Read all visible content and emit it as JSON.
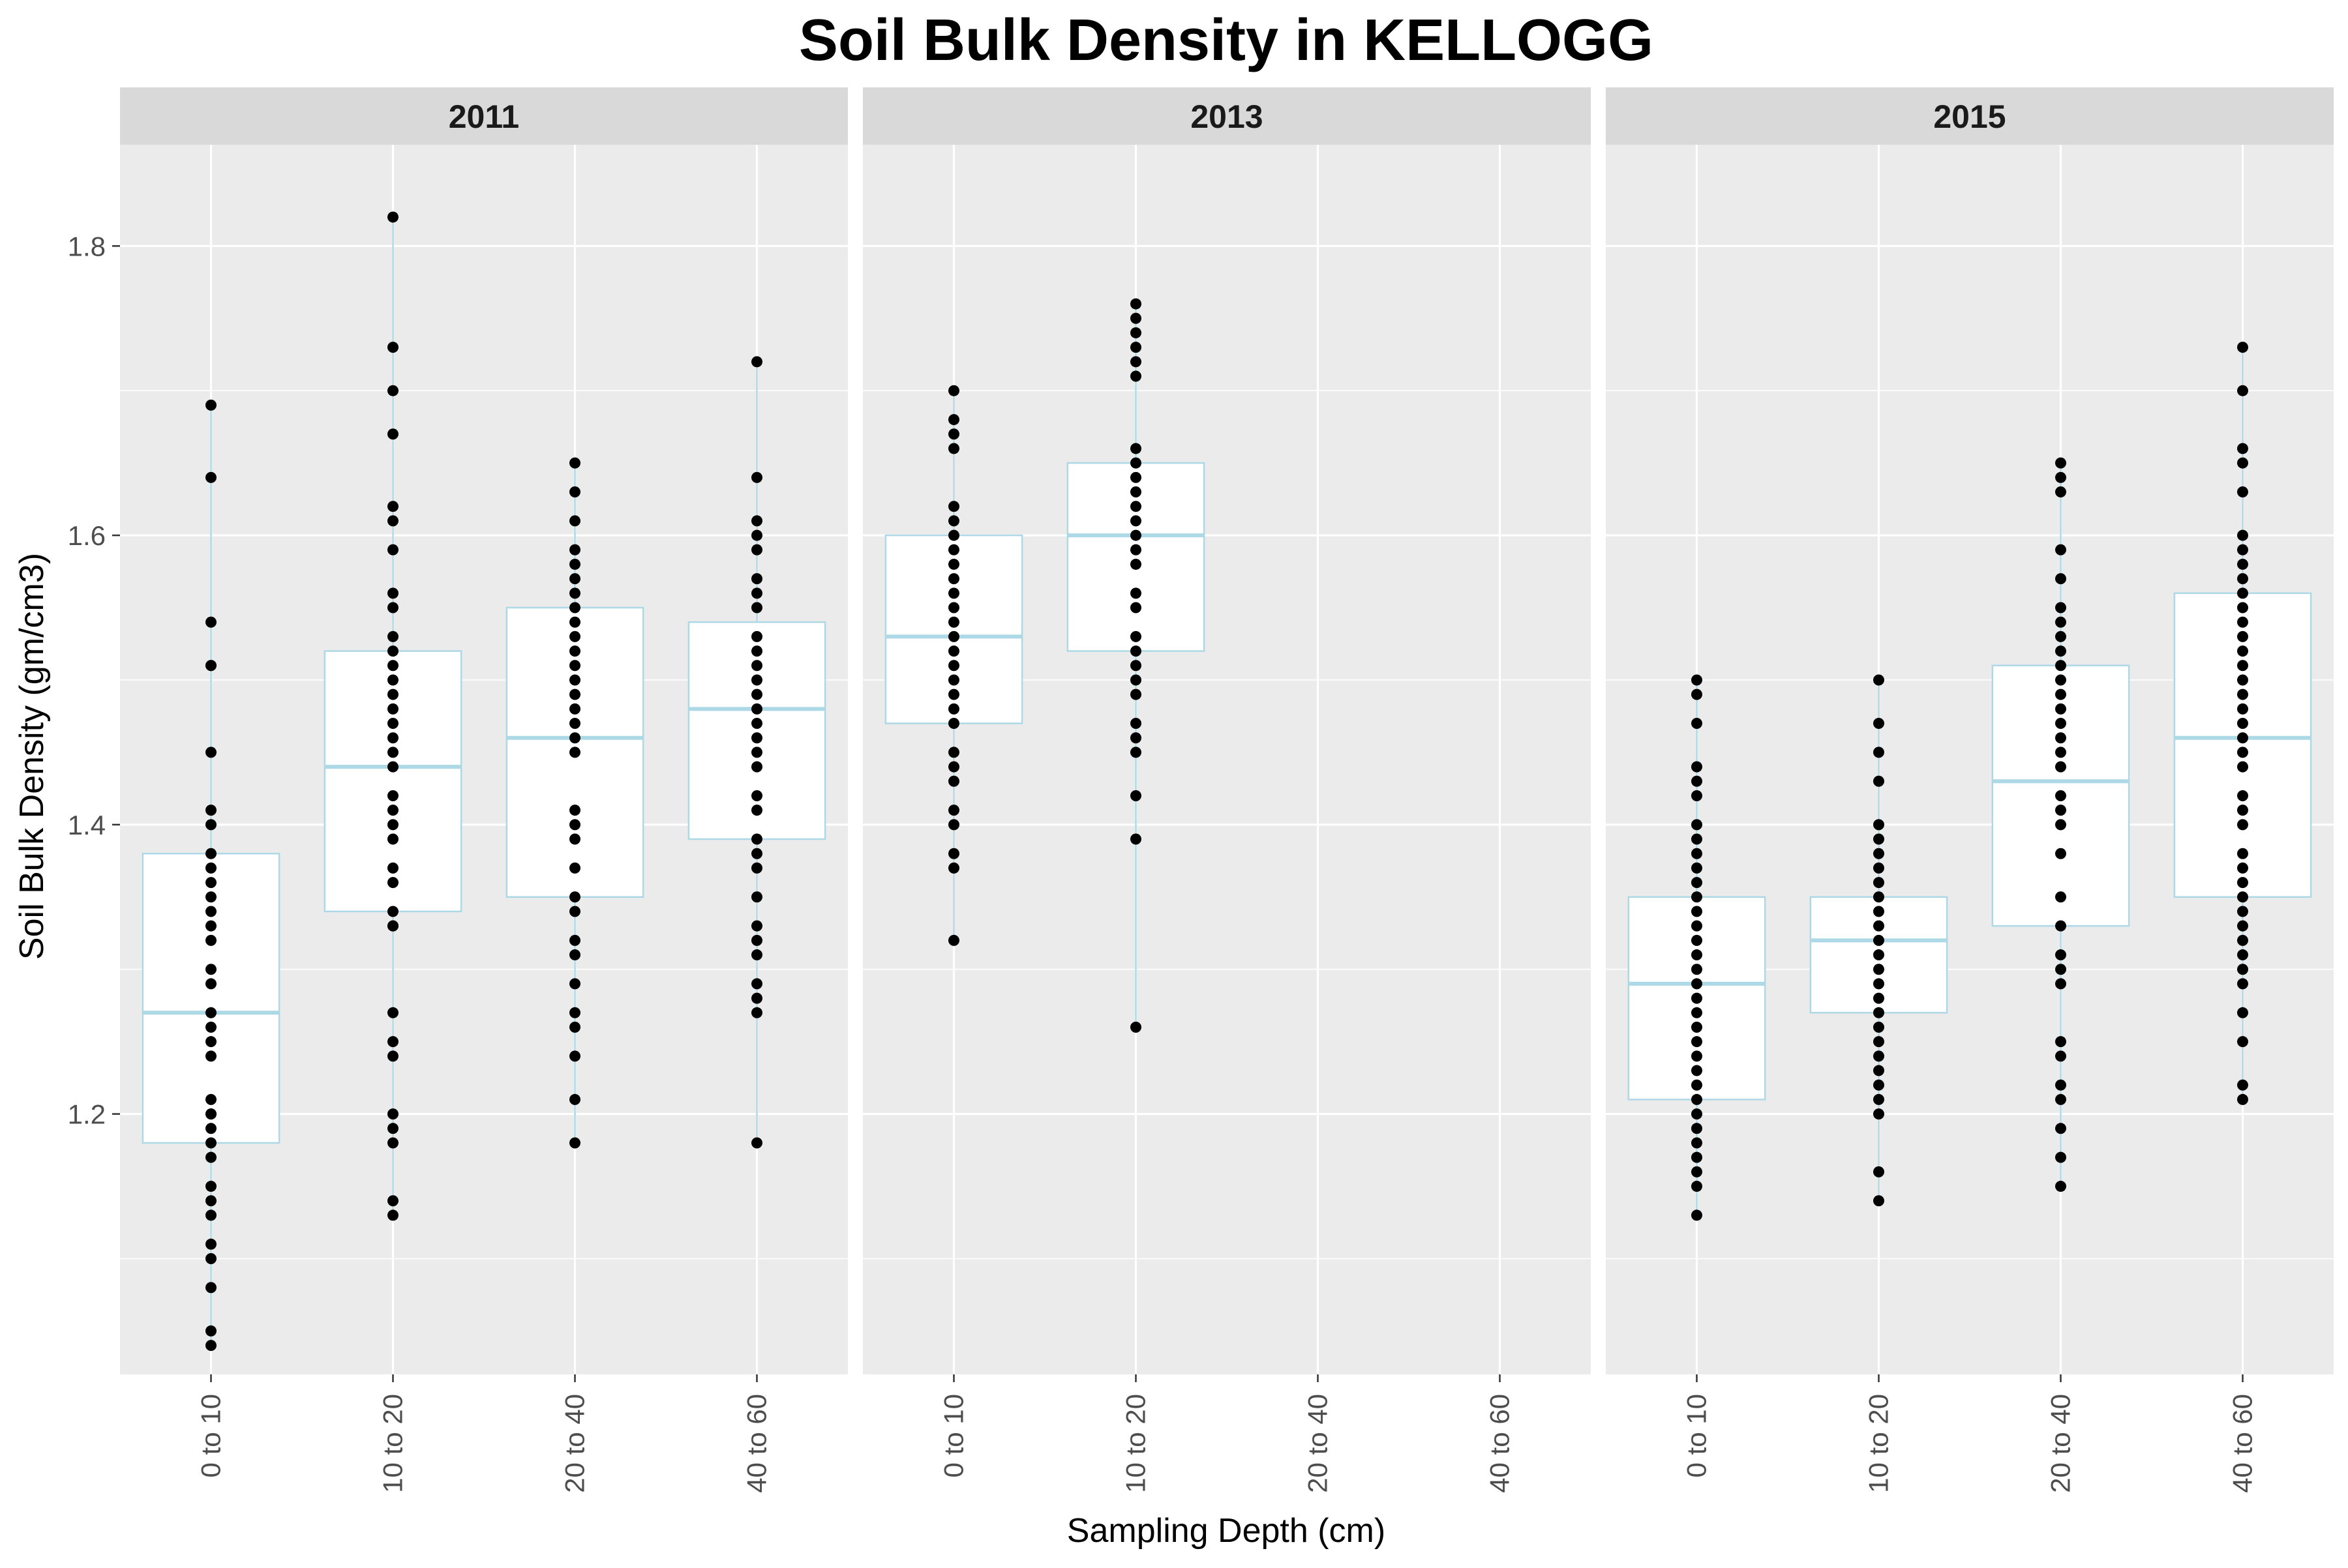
{
  "chart_data": {
    "type": "box",
    "title": "Soil Bulk Density in KELLOGG",
    "xlabel": "Sampling Depth (cm)",
    "ylabel": "Soil Bulk Density (gm/cm3)",
    "ylim": [
      1.02,
      1.87
    ],
    "yticks": [
      1.2,
      1.4,
      1.6,
      1.8
    ],
    "categories": [
      "0 to 10",
      "10 to 20",
      "20 to 40",
      "40 to 60"
    ],
    "grid": true,
    "colors": {
      "panel_bg": "#ebebeb",
      "strip_bg": "#d9d9d9",
      "grid": "#ffffff",
      "box_fill": "#ffffff",
      "box_line": "#add8e6",
      "point": "#000000"
    },
    "panels": [
      {
        "label": "2011",
        "boxes": [
          {
            "category": "0 to 10",
            "min": 1.04,
            "q1": 1.18,
            "median": 1.27,
            "q3": 1.38,
            "max": 1.69,
            "points": [
              1.69,
              1.64,
              1.54,
              1.51,
              1.51,
              1.45,
              1.41,
              1.4,
              1.38,
              1.37,
              1.36,
              1.35,
              1.34,
              1.33,
              1.32,
              1.3,
              1.29,
              1.27,
              1.26,
              1.25,
              1.24,
              1.21,
              1.2,
              1.2,
              1.19,
              1.18,
              1.17,
              1.15,
              1.14,
              1.13,
              1.11,
              1.1,
              1.08,
              1.05,
              1.04
            ]
          },
          {
            "category": "10 to 20",
            "min": 1.13,
            "q1": 1.34,
            "median": 1.44,
            "q3": 1.52,
            "max": 1.82,
            "points": [
              1.82,
              1.73,
              1.7,
              1.67,
              1.62,
              1.61,
              1.59,
              1.56,
              1.55,
              1.53,
              1.52,
              1.51,
              1.5,
              1.49,
              1.48,
              1.47,
              1.46,
              1.45,
              1.44,
              1.42,
              1.41,
              1.4,
              1.39,
              1.37,
              1.36,
              1.34,
              1.33,
              1.33,
              1.27,
              1.25,
              1.24,
              1.2,
              1.19,
              1.18,
              1.14,
              1.13
            ]
          },
          {
            "category": "20 to 40",
            "min": 1.18,
            "q1": 1.35,
            "median": 1.46,
            "q3": 1.55,
            "max": 1.65,
            "points": [
              1.65,
              1.63,
              1.61,
              1.59,
              1.58,
              1.57,
              1.56,
              1.55,
              1.54,
              1.53,
              1.52,
              1.51,
              1.5,
              1.49,
              1.48,
              1.47,
              1.46,
              1.45,
              1.41,
              1.4,
              1.39,
              1.37,
              1.35,
              1.34,
              1.32,
              1.31,
              1.29,
              1.27,
              1.26,
              1.24,
              1.21,
              1.18
            ]
          },
          {
            "category": "40 to 60",
            "min": 1.18,
            "q1": 1.39,
            "median": 1.48,
            "q3": 1.54,
            "max": 1.72,
            "points": [
              1.72,
              1.64,
              1.61,
              1.6,
              1.59,
              1.57,
              1.56,
              1.55,
              1.53,
              1.52,
              1.51,
              1.5,
              1.49,
              1.48,
              1.47,
              1.46,
              1.45,
              1.44,
              1.42,
              1.41,
              1.39,
              1.38,
              1.37,
              1.35,
              1.33,
              1.32,
              1.31,
              1.29,
              1.28,
              1.27,
              1.18
            ]
          }
        ]
      },
      {
        "label": "2013",
        "boxes": [
          {
            "category": "0 to 10",
            "min": 1.32,
            "q1": 1.47,
            "median": 1.53,
            "q3": 1.6,
            "max": 1.7,
            "points": [
              1.7,
              1.68,
              1.67,
              1.66,
              1.62,
              1.61,
              1.6,
              1.59,
              1.58,
              1.57,
              1.56,
              1.55,
              1.54,
              1.53,
              1.52,
              1.51,
              1.5,
              1.49,
              1.48,
              1.47,
              1.45,
              1.44,
              1.43,
              1.41,
              1.4,
              1.38,
              1.37,
              1.32
            ]
          },
          {
            "category": "10 to 20",
            "min": 1.26,
            "q1": 1.52,
            "median": 1.6,
            "q3": 1.65,
            "max": 1.76,
            "points": [
              1.76,
              1.75,
              1.74,
              1.73,
              1.72,
              1.71,
              1.66,
              1.65,
              1.64,
              1.63,
              1.62,
              1.61,
              1.6,
              1.59,
              1.58,
              1.56,
              1.55,
              1.53,
              1.52,
              1.51,
              1.5,
              1.49,
              1.47,
              1.46,
              1.45,
              1.42,
              1.39,
              1.26
            ]
          }
        ]
      },
      {
        "label": "2015",
        "boxes": [
          {
            "category": "0 to 10",
            "min": 1.13,
            "q1": 1.21,
            "median": 1.29,
            "q3": 1.35,
            "max": 1.5,
            "points": [
              1.5,
              1.49,
              1.47,
              1.44,
              1.43,
              1.42,
              1.4,
              1.39,
              1.38,
              1.37,
              1.36,
              1.35,
              1.34,
              1.33,
              1.32,
              1.31,
              1.3,
              1.29,
              1.28,
              1.27,
              1.26,
              1.25,
              1.24,
              1.23,
              1.22,
              1.21,
              1.2,
              1.19,
              1.18,
              1.17,
              1.16,
              1.15,
              1.13
            ]
          },
          {
            "category": "10 to 20",
            "min": 1.14,
            "q1": 1.27,
            "median": 1.32,
            "q3": 1.35,
            "max": 1.5,
            "points": [
              1.5,
              1.47,
              1.45,
              1.43,
              1.4,
              1.39,
              1.38,
              1.37,
              1.36,
              1.35,
              1.34,
              1.33,
              1.32,
              1.31,
              1.3,
              1.29,
              1.28,
              1.27,
              1.26,
              1.25,
              1.24,
              1.23,
              1.22,
              1.21,
              1.2,
              1.16,
              1.14
            ]
          },
          {
            "category": "20 to 40",
            "min": 1.15,
            "q1": 1.33,
            "median": 1.43,
            "q3": 1.51,
            "max": 1.65,
            "points": [
              1.65,
              1.64,
              1.63,
              1.59,
              1.57,
              1.55,
              1.54,
              1.53,
              1.52,
              1.51,
              1.5,
              1.49,
              1.48,
              1.47,
              1.46,
              1.45,
              1.44,
              1.42,
              1.41,
              1.4,
              1.38,
              1.35,
              1.33,
              1.31,
              1.3,
              1.29,
              1.25,
              1.24,
              1.22,
              1.21,
              1.19,
              1.17,
              1.15
            ]
          },
          {
            "category": "40 to 60",
            "min": 1.21,
            "q1": 1.35,
            "median": 1.46,
            "q3": 1.56,
            "max": 1.73,
            "points": [
              1.73,
              1.7,
              1.66,
              1.65,
              1.63,
              1.6,
              1.59,
              1.58,
              1.57,
              1.56,
              1.55,
              1.54,
              1.53,
              1.52,
              1.51,
              1.5,
              1.49,
              1.48,
              1.47,
              1.46,
              1.45,
              1.44,
              1.42,
              1.41,
              1.4,
              1.38,
              1.37,
              1.36,
              1.35,
              1.34,
              1.33,
              1.32,
              1.31,
              1.3,
              1.29,
              1.27,
              1.25,
              1.22,
              1.21
            ]
          }
        ]
      }
    ]
  }
}
